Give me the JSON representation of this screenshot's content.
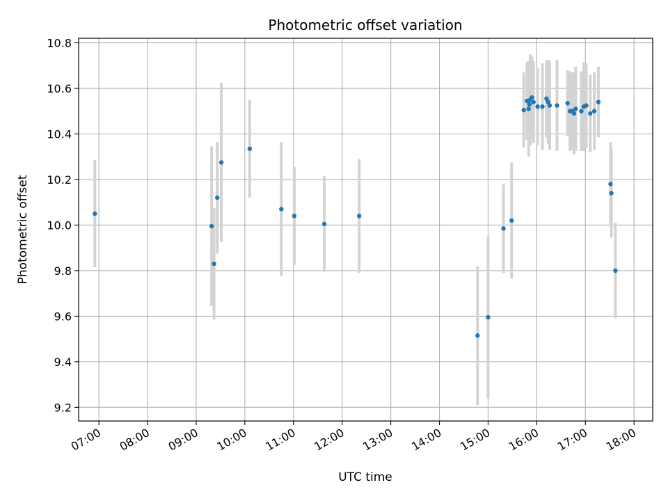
{
  "chart_data": {
    "type": "scatter",
    "title": "Photometric offset variation",
    "xlabel": "UTC time",
    "ylabel": "Photometric offset",
    "xlim": [
      "06:35",
      "18:23"
    ],
    "ylim": [
      9.14,
      10.82
    ],
    "x_ticks": [
      "07:00",
      "08:00",
      "09:00",
      "10:00",
      "11:00",
      "12:00",
      "13:00",
      "14:00",
      "15:00",
      "16:00",
      "17:00",
      "18:00"
    ],
    "y_ticks": [
      "9.2",
      "9.4",
      "9.6",
      "9.8",
      "10.0",
      "10.2",
      "10.4",
      "10.6",
      "10.8"
    ],
    "grid": true,
    "colors": {
      "marker": "#1f77b4",
      "errorbar": "#d3d3d3",
      "grid": "#b0b0b0"
    },
    "series": [
      {
        "x": [
          "06:55",
          "09:19",
          "09:22",
          "09:26",
          "09:31",
          "10:06",
          "10:45",
          "11:01",
          "11:38",
          "12:21",
          "14:47",
          "15:00",
          "15:19",
          "15:29",
          "15:44",
          "15:48",
          "15:50",
          "15:51",
          "15:52",
          "15:54",
          "15:56",
          "16:01",
          "16:07",
          "16:12",
          "16:14",
          "16:16",
          "16:25",
          "16:38",
          "16:41",
          "16:44",
          "16:46",
          "16:48",
          "16:55",
          "16:58",
          "17:01",
          "17:06",
          "17:11",
          "17:16",
          "17:31",
          "17:32",
          "17:37"
        ],
        "y": [
          10.05,
          9.995,
          9.83,
          10.12,
          10.275,
          10.335,
          10.07,
          10.04,
          10.005,
          10.04,
          9.515,
          9.595,
          9.985,
          10.02,
          10.505,
          10.545,
          10.51,
          10.53,
          10.55,
          10.56,
          10.54,
          10.52,
          10.52,
          10.555,
          10.54,
          10.525,
          10.525,
          10.535,
          10.5,
          10.5,
          10.49,
          10.51,
          10.5,
          10.52,
          10.525,
          10.49,
          10.5,
          10.54,
          10.18,
          10.14,
          9.8
        ],
        "err": [
          0.235,
          0.35,
          0.245,
          0.245,
          0.35,
          0.215,
          0.295,
          0.215,
          0.21,
          0.25,
          0.305,
          0.355,
          0.195,
          0.255,
          0.165,
          0.17,
          0.21,
          0.17,
          0.2,
          0.18,
          0.18,
          0.17,
          0.19,
          0.17,
          0.185,
          0.195,
          0.2,
          0.145,
          0.175,
          0.17,
          0.18,
          0.185,
          0.175,
          0.195,
          0.185,
          0.17,
          0.17,
          0.155,
          0.185,
          0.195,
          0.21
        ]
      }
    ]
  }
}
